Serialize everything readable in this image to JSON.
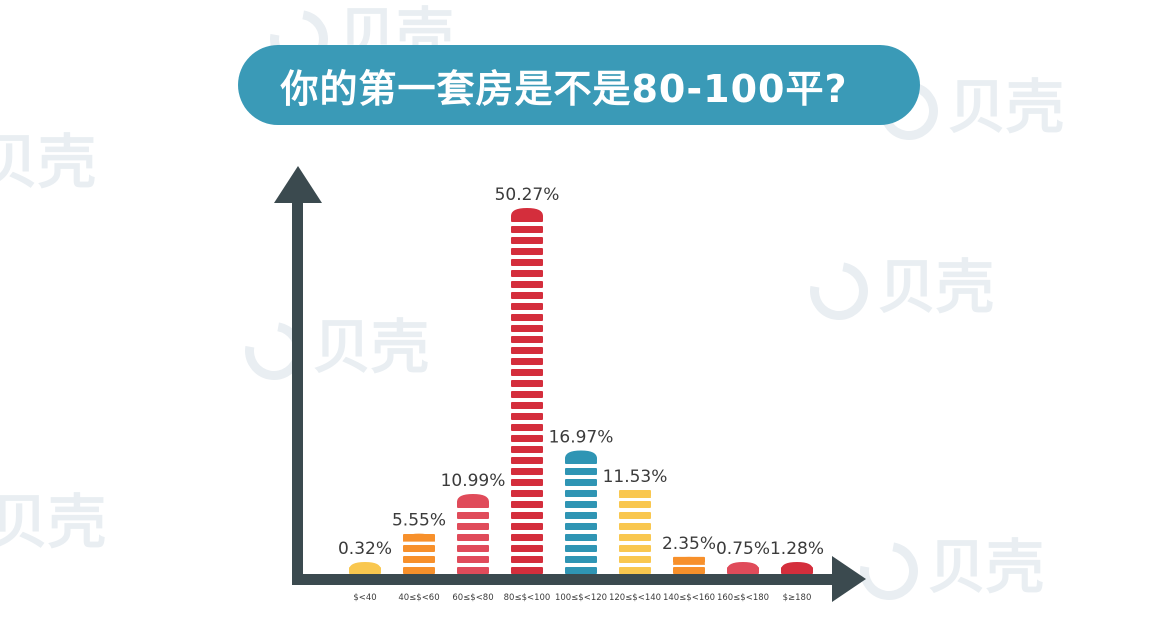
{
  "title": "你的第一套房是不是80-100平?",
  "watermark_text": "贝壳",
  "chart_data": {
    "type": "bar",
    "title": "你的第一套房是不是80-100平?",
    "xlabel": "",
    "ylabel": "",
    "categories": [
      "$<40",
      "40≤$<60",
      "60≤$<80",
      "80≤$<100",
      "100≤$<120",
      "120≤$<140",
      "140≤$<160",
      "160≤$<180",
      "$≥180"
    ],
    "values": [
      0.32,
      5.55,
      10.99,
      50.27,
      16.97,
      11.53,
      2.35,
      0.75,
      1.28
    ],
    "labels": [
      "0.32%",
      "5.55%",
      "10.99%",
      "50.27%",
      "16.97%",
      "11.53%",
      "2.35%",
      "0.75%",
      "1.28%"
    ],
    "colors": [
      "#f9c74f",
      "#f7902b",
      "#e04b5a",
      "#d42e3c",
      "#2f95b4",
      "#f9c74f",
      "#f7902b",
      "#e04b5a",
      "#d42e3c"
    ],
    "grid": false,
    "legend": "none"
  }
}
